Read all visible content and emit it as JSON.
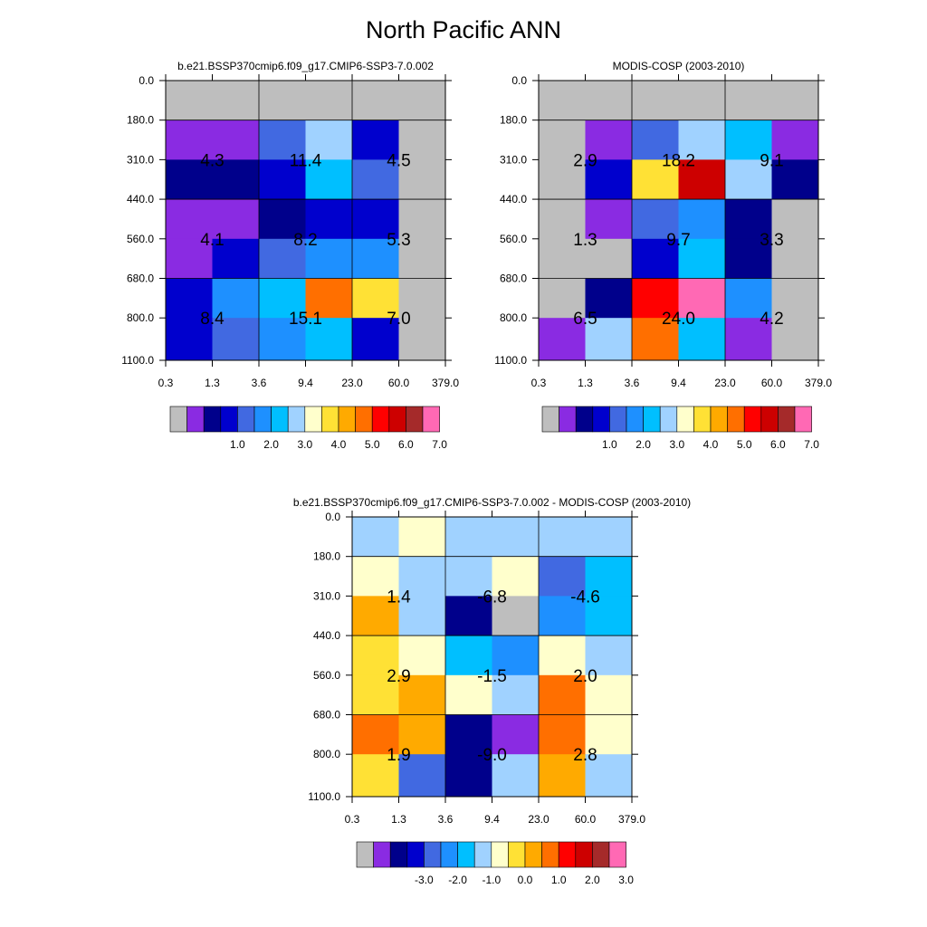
{
  "title": "North Pacific ANN",
  "palette_abs": [
    "#bebebe",
    "#8a2be2",
    "#00008b",
    "#0000cd",
    "#4169e1",
    "#1e90ff",
    "#00bfff",
    "#a0d2ff",
    "#ffffcc",
    "#ffe135",
    "#ffaa00",
    "#ff6f00",
    "#ff0000",
    "#cd0000",
    "#a52a2a",
    "#ff69b4"
  ],
  "palette_diff": [
    "#bebebe",
    "#8a2be2",
    "#00008b",
    "#0000cd",
    "#4169e1",
    "#1e90ff",
    "#00bfff",
    "#a0d2ff",
    "#ffffcc",
    "#ffe135",
    "#ffaa00",
    "#ff6f00",
    "#ff0000",
    "#cd0000",
    "#a52a2a",
    "#ff69b4"
  ],
  "chart_data": [
    {
      "type": "heatmap",
      "title": "b.e21.BSSP370cmip6.f09_g17.CMIP6-SSP3-7.0.002",
      "x_ticks": [
        "0.3",
        "1.3",
        "3.6",
        "9.4",
        "23.0",
        "60.0",
        "379.0"
      ],
      "y_ticks": [
        "0.0",
        "180.0",
        "310.0",
        "440.0",
        "560.0",
        "680.0",
        "800.0",
        "1100.0"
      ],
      "color_index": [
        [
          0,
          0,
          0,
          0,
          0,
          0
        ],
        [
          1,
          1,
          4,
          7,
          3,
          0
        ],
        [
          2,
          2,
          3,
          6,
          4,
          0
        ],
        [
          1,
          1,
          2,
          3,
          3,
          0
        ],
        [
          1,
          3,
          4,
          5,
          5,
          0
        ],
        [
          3,
          5,
          6,
          11,
          9,
          0
        ],
        [
          3,
          4,
          5,
          6,
          3,
          0
        ]
      ],
      "block_labels": [
        [
          "4.3",
          "11.4",
          "4.5"
        ],
        [
          "4.1",
          "8.2",
          "5.3"
        ],
        [
          "8.4",
          "15.1",
          "7.0"
        ]
      ],
      "colorbar_labels": [
        "1.0",
        "2.0",
        "3.0",
        "4.0",
        "5.0",
        "6.0",
        "7.0"
      ]
    },
    {
      "type": "heatmap",
      "title": "MODIS-COSP (2003-2010)",
      "x_ticks": [
        "0.3",
        "1.3",
        "3.6",
        "9.4",
        "23.0",
        "60.0",
        "379.0"
      ],
      "y_ticks": [
        "0.0",
        "180.0",
        "310.0",
        "440.0",
        "560.0",
        "680.0",
        "800.0",
        "1100.0"
      ],
      "color_index": [
        [
          0,
          0,
          0,
          0,
          0,
          0
        ],
        [
          0,
          1,
          4,
          7,
          6,
          1
        ],
        [
          0,
          3,
          9,
          13,
          7,
          2
        ],
        [
          0,
          1,
          4,
          5,
          2,
          0
        ],
        [
          0,
          0,
          3,
          6,
          2,
          0
        ],
        [
          0,
          2,
          12,
          15,
          5,
          0
        ],
        [
          1,
          7,
          11,
          6,
          1,
          0
        ]
      ],
      "block_labels": [
        [
          "2.9",
          "18.2",
          "9.1"
        ],
        [
          "1.3",
          "9.7",
          "3.3"
        ],
        [
          "6.5",
          "24.0",
          "4.2"
        ]
      ],
      "colorbar_labels": [
        "1.0",
        "2.0",
        "3.0",
        "4.0",
        "5.0",
        "6.0",
        "7.0"
      ]
    },
    {
      "type": "heatmap",
      "title": "b.e21.BSSP370cmip6.f09_g17.CMIP6-SSP3-7.0.002 - MODIS-COSP (2003-2010)",
      "x_ticks": [
        "0.3",
        "1.3",
        "3.6",
        "9.4",
        "23.0",
        "60.0",
        "379.0"
      ],
      "y_ticks": [
        "0.0",
        "180.0",
        "310.0",
        "440.0",
        "560.0",
        "680.0",
        "800.0",
        "1100.0"
      ],
      "color_index": [
        [
          7,
          8,
          7,
          7,
          7,
          7
        ],
        [
          8,
          7,
          7,
          8,
          4,
          6
        ],
        [
          10,
          7,
          2,
          0,
          5,
          6
        ],
        [
          9,
          8,
          6,
          5,
          8,
          7
        ],
        [
          9,
          10,
          8,
          7,
          11,
          8
        ],
        [
          11,
          10,
          2,
          1,
          11,
          8
        ],
        [
          9,
          4,
          2,
          7,
          10,
          7
        ]
      ],
      "block_labels": [
        [
          "1.4",
          "-6.8",
          "-4.6"
        ],
        [
          "2.9",
          "-1.5",
          "2.0"
        ],
        [
          "1.9",
          "-9.0",
          "2.8"
        ]
      ],
      "colorbar_labels": [
        "-3.0",
        "-2.0",
        "-1.0",
        "0.0",
        "1.0",
        "2.0",
        "3.0"
      ]
    }
  ]
}
